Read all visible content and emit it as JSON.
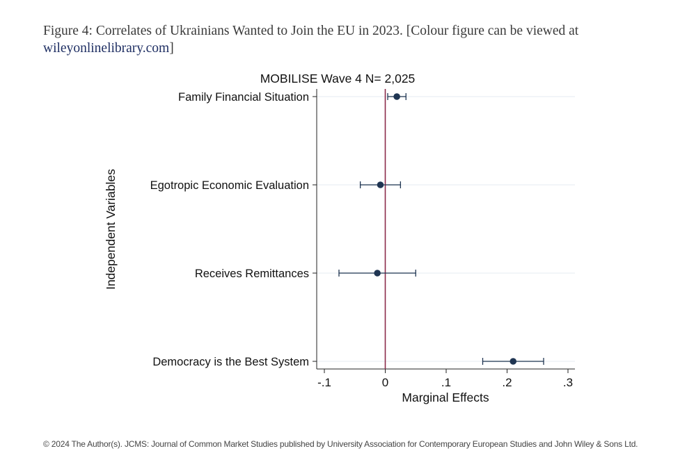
{
  "caption": {
    "text": "Figure 4: Correlates of Ukrainians Wanted to Join the EU in 2023. [Colour figure can be viewed at ",
    "link": "wileyonlinelibrary.com",
    "close": "]"
  },
  "chart_data": {
    "type": "coefficient-plot",
    "title": "MOBILISE Wave 4 N= 2,025",
    "xlabel": "Marginal Effects",
    "ylabel": "Independent Variables",
    "xlim": [
      -0.1,
      0.3
    ],
    "xticks": [
      -0.1,
      0,
      0.1,
      0.2,
      0.3
    ],
    "xtick_labels": [
      "-.1",
      "0",
      ".1",
      ".2",
      ".3"
    ],
    "reference_line": 0,
    "series": [
      {
        "name": "Family Financial Situation",
        "estimate": 0.019,
        "ci": [
          0.004,
          0.034
        ]
      },
      {
        "name": "Egotropic Economic Evaluation",
        "estimate": -0.008,
        "ci": [
          -0.041,
          0.025
        ]
      },
      {
        "name": "Receives Remittances",
        "estimate": -0.013,
        "ci": [
          -0.076,
          0.05
        ]
      },
      {
        "name": "Democracy is the Best System",
        "estimate": 0.21,
        "ci": [
          0.16,
          0.26
        ]
      }
    ],
    "colors": {
      "point": "#1f3552",
      "reference": "#8b2a4a",
      "grid": "#eef2f6"
    }
  },
  "footer": {
    "text": "© 2024 The Author(s). JCMS: Journal of Common Market Studies published by University Association for Contemporary European Studies and John Wiley & Sons Ltd."
  }
}
